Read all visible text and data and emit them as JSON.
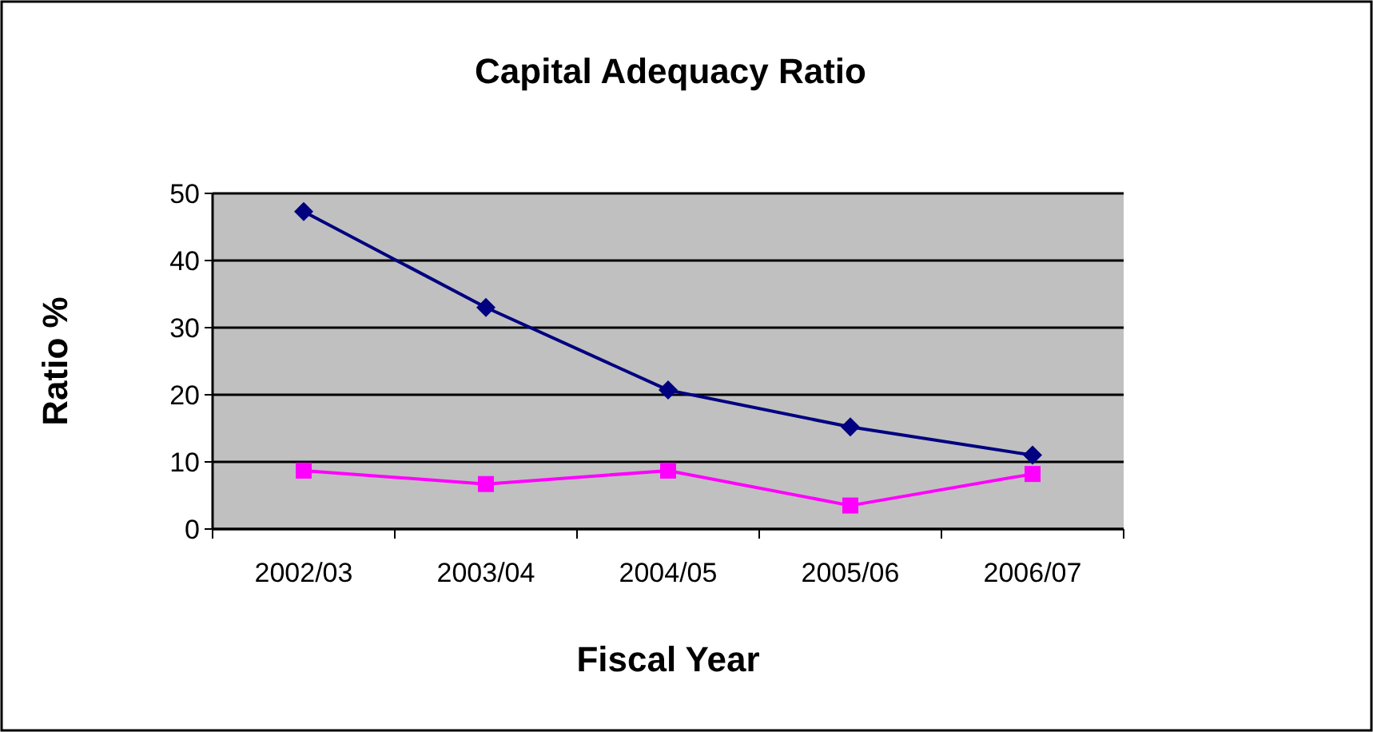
{
  "chart_data": {
    "type": "line",
    "title": "Capital Adequacy Ratio",
    "xlabel": "Fiscal Year",
    "ylabel": "Ratio %",
    "categories": [
      "2002/03",
      "2003/04",
      "2004/05",
      "2005/06",
      "2006/07"
    ],
    "series": [
      {
        "color": "#000080",
        "marker": "diamond",
        "values": [
          47.3,
          33.0,
          20.7,
          15.2,
          11.0
        ]
      },
      {
        "color": "#ff00ff",
        "marker": "square",
        "values": [
          8.7,
          6.7,
          8.7,
          3.5,
          8.2
        ]
      }
    ],
    "ylim": [
      0,
      50
    ],
    "yticks": [
      0,
      10,
      20,
      30,
      40,
      50
    ],
    "grid": "y"
  }
}
